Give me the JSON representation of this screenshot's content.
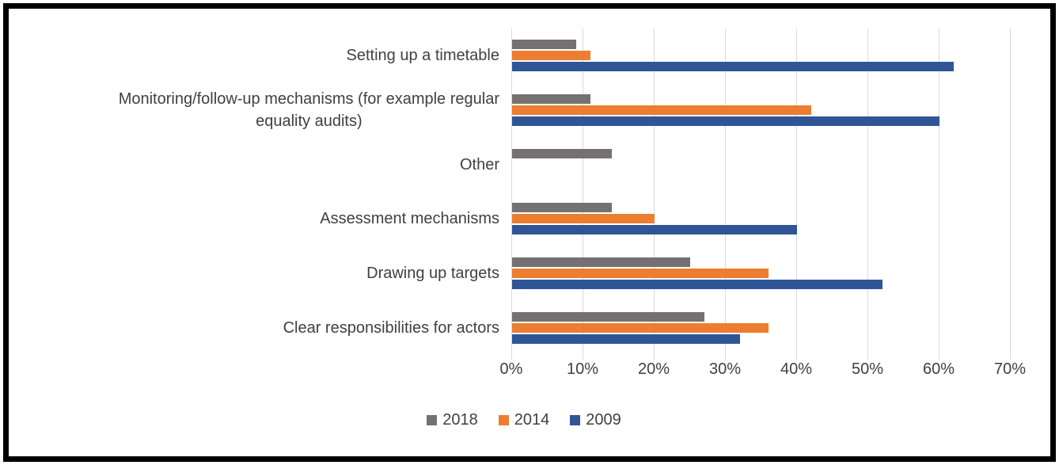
{
  "chart_data": {
    "type": "bar",
    "orientation": "horizontal",
    "title": "",
    "categories": [
      "Setting up a timetable",
      "Monitoring/follow-up mechanisms (for example regular\nequality audits)",
      "Other",
      "Assessment mechanisms",
      "Drawing up targets",
      "Clear responsibilities for actors"
    ],
    "series": [
      {
        "name": "2018",
        "color": "#767171",
        "values": [
          9,
          11,
          14,
          14,
          25,
          27
        ]
      },
      {
        "name": "2014",
        "color": "#ED7D31",
        "values": [
          11,
          42,
          0,
          20,
          36,
          36
        ]
      },
      {
        "name": "2009",
        "color": "#2F5597",
        "values": [
          62,
          60,
          0,
          40,
          52,
          32
        ]
      }
    ],
    "x_axis": {
      "unit": "%",
      "min": 0,
      "max": 70,
      "tick_step": 10,
      "ticks": [
        "0%",
        "10%",
        "20%",
        "30%",
        "40%",
        "50%",
        "60%",
        "70%"
      ]
    },
    "legend": {
      "position": "bottom",
      "entries": [
        "2018",
        "2014",
        "2009"
      ]
    },
    "grid": true,
    "colors": {
      "gridline": "#d9d9d9",
      "text": "#404040",
      "background": "#ffffff",
      "frame_border": "#000000"
    }
  }
}
